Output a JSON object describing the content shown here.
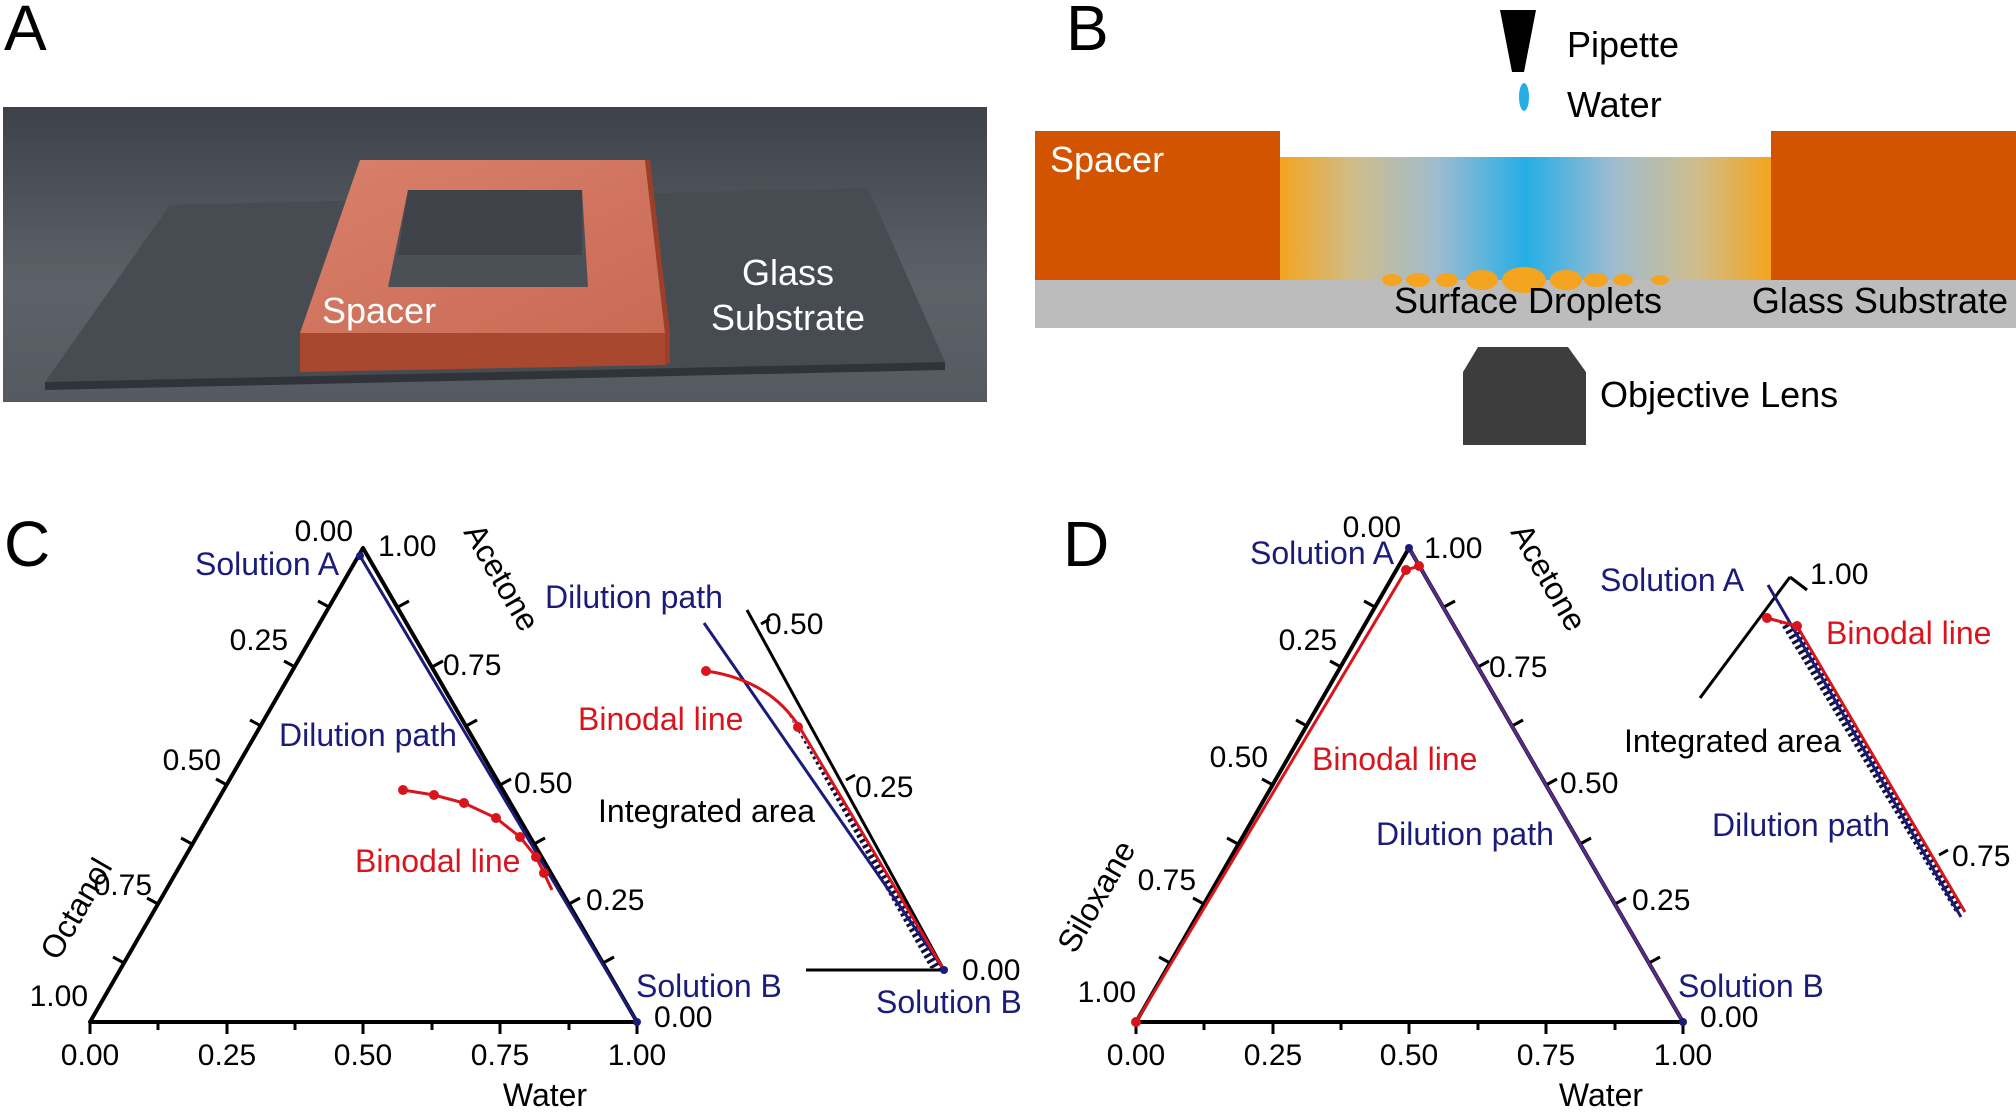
{
  "panels": {
    "a": {
      "letter": "A",
      "labels": {
        "spacer": "Spacer",
        "glass_1": "Glass",
        "glass_2": "Substrate"
      }
    },
    "b": {
      "letter": "B",
      "labels": {
        "pipette": "Pipette",
        "water": "Water",
        "spacer": "Spacer",
        "surface_droplets": "Surface Droplets",
        "glass_substrate": "Glass Substrate",
        "objective_lens": "Objective Lens"
      }
    },
    "c": {
      "letter": "C",
      "axis_titles": {
        "left": "Octanol",
        "right": "Acetone",
        "bottom": "Water"
      },
      "ticks": {
        "bottom": [
          "0.00",
          "0.25",
          "0.50",
          "0.75",
          "1.00"
        ],
        "left": [
          "0.00",
          "0.25",
          "0.50",
          "0.75",
          "1.00"
        ],
        "right": [
          "1.00",
          "0.75",
          "0.50",
          "0.25",
          "0.00"
        ]
      },
      "annotations": {
        "solution_a": "Solution A",
        "solution_b": "Solution B",
        "dilution_path": "Dilution path",
        "binodal_line": "Binodal line"
      },
      "inset": {
        "dilution_path": "Dilution path",
        "binodal_line": "Binodal line",
        "integrated_area": "Integrated area",
        "solution_b": "Solution B",
        "ticks": [
          "0.50",
          "0.25",
          "0.00"
        ]
      }
    },
    "d": {
      "letter": "D",
      "axis_titles": {
        "left": "Siloxane",
        "right": "Acetone",
        "bottom": "Water"
      },
      "ticks": {
        "bottom": [
          "0.00",
          "0.25",
          "0.50",
          "0.75",
          "1.00"
        ],
        "left": [
          "0.00",
          "0.25",
          "0.50",
          "0.75",
          "1.00"
        ],
        "right": [
          "1.00",
          "0.75",
          "0.50",
          "0.25",
          "0.00"
        ]
      },
      "annotations": {
        "solution_a": "Solution A",
        "solution_b": "Solution B",
        "dilution_path": "Dilution path",
        "binodal_line": "Binodal line"
      },
      "inset": {
        "solution_a": "Solution A",
        "binodal_line": "Binodal line",
        "integrated_area": "Integrated area",
        "dilution_path": "Dilution path",
        "ticks": [
          "1.00",
          "0.75"
        ]
      }
    }
  },
  "colors": {
    "spacer": "#d35400",
    "glass": "#bcbcbc",
    "lens": "#3d3d3d",
    "dilution_path": "#1b1b7a",
    "binodal_line": "#d8141d"
  }
}
